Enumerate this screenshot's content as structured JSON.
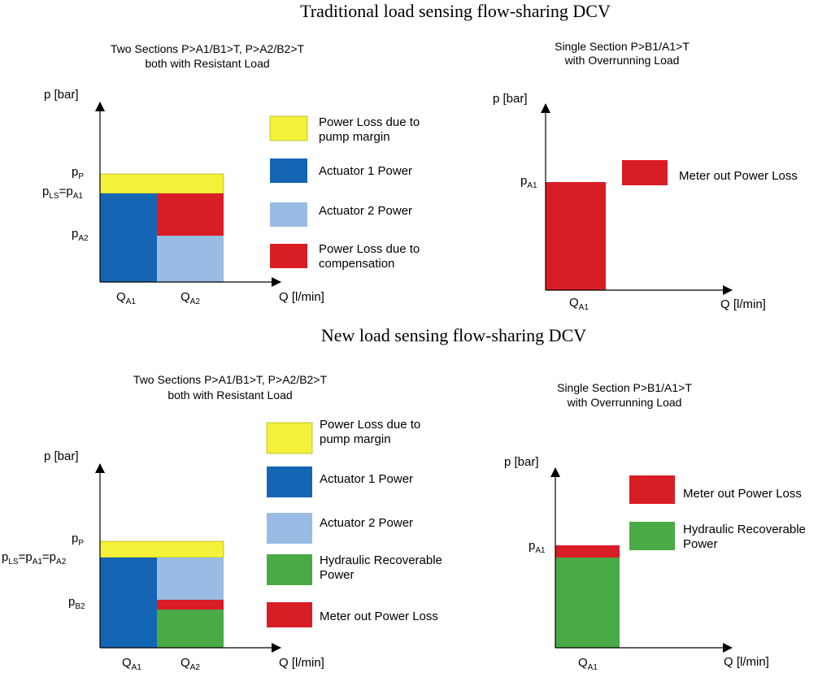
{
  "colors": {
    "yellow": "#f4f13a",
    "dark_blue": "#1466b4",
    "light_blue": "#99bce4",
    "red": "#d91d25",
    "green": "#4aaa45",
    "axis": "#000000"
  },
  "traditional": {
    "title": "Traditional load sensing flow-sharing DCV",
    "two": {
      "subtitle1": "Two Sections P>A1/B1>T, P>A2/B2>T",
      "subtitle2": "both with Resistant Load",
      "yaxis": "p [bar]",
      "xaxis": "Q [l/min]",
      "pp": {
        "m": "p",
        "s": "P"
      },
      "pls": {
        "a": "p",
        "b": "LS",
        "c": "=p",
        "d": "A1"
      },
      "pa2": {
        "m": "p",
        "s": "A2"
      },
      "qa1": {
        "m": "Q",
        "s": "A1"
      },
      "qa2": {
        "m": "Q",
        "s": "A2"
      },
      "legend": [
        {
          "line1": "Power Loss due to",
          "line2": "pump margin",
          "color": "yellow"
        },
        {
          "line1": "Actuator 1 Power",
          "line2": "",
          "color": "dark_blue"
        },
        {
          "line1": "Actuator 2 Power",
          "line2": "",
          "color": "light_blue"
        },
        {
          "line1": "Power Loss due to",
          "line2": "compensation",
          "color": "red"
        }
      ]
    },
    "single": {
      "subtitle1": "Single Section P>B1/A1>T",
      "subtitle2": "with Overrunning Load",
      "yaxis": "p [bar]",
      "xaxis": "Q [l/min]",
      "pa1": {
        "m": "p",
        "s": "A1"
      },
      "qa1": {
        "m": "Q",
        "s": "A1"
      },
      "legend": [
        {
          "line1": "Meter out Power Loss",
          "line2": "",
          "color": "red"
        }
      ]
    }
  },
  "new": {
    "title": "New load sensing flow-sharing DCV",
    "two": {
      "subtitle1": "Two Sections P>A1/B1>T, P>A2/B2>T",
      "subtitle2": "both with Resistant Load",
      "yaxis": "p [bar]",
      "xaxis": "Q [l/min]",
      "pp": {
        "m": "p",
        "s": "P"
      },
      "pls": {
        "a": "p",
        "b": "LS",
        "c": "=p",
        "d": "A1",
        "e": "=p",
        "f": "A2"
      },
      "pb2": {
        "m": "p",
        "s": "B2"
      },
      "qa1": {
        "m": "Q",
        "s": "A1"
      },
      "qa2": {
        "m": "Q",
        "s": "A2"
      },
      "legend": [
        {
          "line1": "Power Loss due to",
          "line2": "pump margin",
          "color": "yellow"
        },
        {
          "line1": "Actuator 1 Power",
          "line2": "",
          "color": "dark_blue"
        },
        {
          "line1": "Actuator 2 Power",
          "line2": "",
          "color": "light_blue"
        },
        {
          "line1": "Hydraulic Recoverable",
          "line2": "Power",
          "color": "green"
        },
        {
          "line1": "Meter out Power Loss",
          "line2": "",
          "color": "red"
        }
      ]
    },
    "single": {
      "subtitle1": "Single Section P>B1/A1>T",
      "subtitle2": "with Overrunning Load",
      "yaxis": "p [bar]",
      "xaxis": "Q [l/min]",
      "pa1": {
        "m": "p",
        "s": "A1"
      },
      "qa1": {
        "m": "Q",
        "s": "A1"
      },
      "legend": [
        {
          "line1": "Meter out Power Loss",
          "line2": "",
          "color": "red"
        },
        {
          "line1": "Hydraulic Recoverable",
          "line2": "Power",
          "color": "green"
        }
      ]
    }
  }
}
